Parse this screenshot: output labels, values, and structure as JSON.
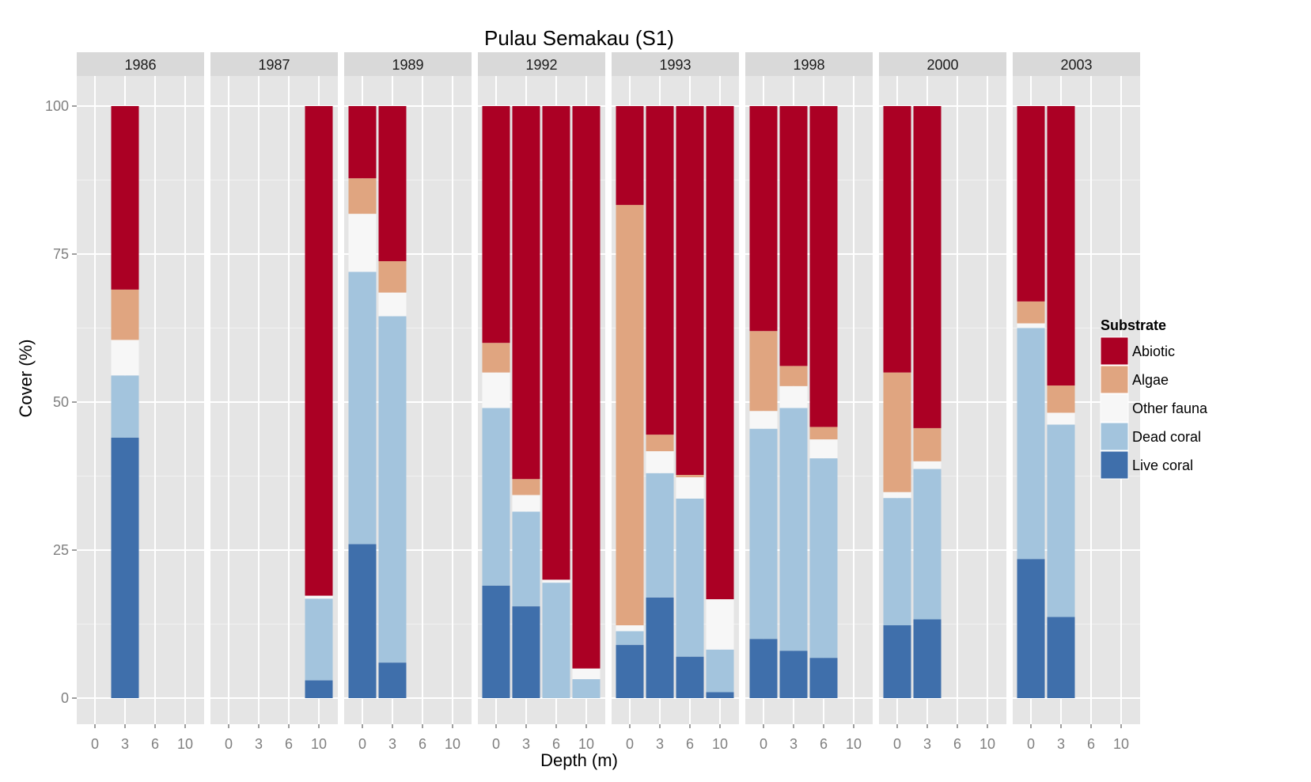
{
  "chart_data": {
    "type": "bar",
    "stacked": true,
    "faceted_by": "year",
    "title": "Pulau Semakau (S1)",
    "xlabel": "Depth (m)",
    "ylabel": "Cover (%)",
    "ylim": [
      0,
      100
    ],
    "yticks": [
      0,
      25,
      50,
      75,
      100
    ],
    "x_categories": [
      0,
      3,
      6,
      10
    ],
    "x_tick_labels": [
      "0",
      "3",
      "6",
      "10"
    ],
    "grid": true,
    "legend": {
      "title": "Substrate",
      "position": "right",
      "items": [
        {
          "name": "Abiotic",
          "color": "#ab0024"
        },
        {
          "name": "Algae",
          "color": "#e0a580"
        },
        {
          "name": "Other fauna",
          "color": "#f7f7f7"
        },
        {
          "name": "Dead coral",
          "color": "#a3c4dd"
        },
        {
          "name": "Live coral",
          "color": "#3f6fab"
        }
      ]
    },
    "stack_order_bottom_to_top": [
      "Live coral",
      "Dead coral",
      "Other fauna",
      "Algae",
      "Abiotic"
    ],
    "panels": [
      {
        "year": "1986",
        "bars": [
          {
            "depth": 3,
            "values": {
              "Live coral": 44,
              "Dead coral": 10.5,
              "Other fauna": 6,
              "Algae": 8.5,
              "Abiotic": 31
            }
          }
        ]
      },
      {
        "year": "1987",
        "bars": [
          {
            "depth": 10,
            "values": {
              "Live coral": 3,
              "Dead coral": 13.8,
              "Other fauna": 0.5,
              "Algae": 0,
              "Abiotic": 82.7
            }
          }
        ]
      },
      {
        "year": "1989",
        "bars": [
          {
            "depth": 0,
            "values": {
              "Live coral": 26,
              "Dead coral": 46,
              "Other fauna": 9.8,
              "Algae": 6,
              "Abiotic": 12.2
            }
          },
          {
            "depth": 3,
            "values": {
              "Live coral": 6,
              "Dead coral": 58.5,
              "Other fauna": 4,
              "Algae": 5.3,
              "Abiotic": 26.2
            }
          }
        ]
      },
      {
        "year": "1992",
        "bars": [
          {
            "depth": 0,
            "values": {
              "Live coral": 19,
              "Dead coral": 30,
              "Other fauna": 6,
              "Algae": 5,
              "Abiotic": 40
            }
          },
          {
            "depth": 3,
            "values": {
              "Live coral": 15.5,
              "Dead coral": 16,
              "Other fauna": 2.8,
              "Algae": 2.7,
              "Abiotic": 63
            }
          },
          {
            "depth": 6,
            "values": {
              "Live coral": 0,
              "Dead coral": 19.5,
              "Other fauna": 0.5,
              "Algae": 0,
              "Abiotic": 80
            }
          },
          {
            "depth": 10,
            "values": {
              "Live coral": 0,
              "Dead coral": 3.2,
              "Other fauna": 1.8,
              "Algae": 0,
              "Abiotic": 95
            }
          }
        ]
      },
      {
        "year": "1993",
        "bars": [
          {
            "depth": 0,
            "values": {
              "Live coral": 9,
              "Dead coral": 2.3,
              "Other fauna": 1,
              "Algae": 71,
              "Abiotic": 16.7
            }
          },
          {
            "depth": 3,
            "values": {
              "Live coral": 17,
              "Dead coral": 21,
              "Other fauna": 3.7,
              "Algae": 2.8,
              "Abiotic": 55.5
            }
          },
          {
            "depth": 6,
            "values": {
              "Live coral": 7,
              "Dead coral": 26.7,
              "Other fauna": 3.6,
              "Algae": 0.4,
              "Abiotic": 62.3
            }
          },
          {
            "depth": 10,
            "values": {
              "Live coral": 1,
              "Dead coral": 7.2,
              "Other fauna": 8.5,
              "Algae": 0,
              "Abiotic": 83.3
            }
          }
        ]
      },
      {
        "year": "1998",
        "bars": [
          {
            "depth": 0,
            "values": {
              "Live coral": 10,
              "Dead coral": 35.5,
              "Other fauna": 3,
              "Algae": 13.5,
              "Abiotic": 38
            }
          },
          {
            "depth": 3,
            "values": {
              "Live coral": 8,
              "Dead coral": 41,
              "Other fauna": 3.7,
              "Algae": 3.4,
              "Abiotic": 43.9
            }
          },
          {
            "depth": 6,
            "values": {
              "Live coral": 6.8,
              "Dead coral": 33.7,
              "Other fauna": 3.2,
              "Algae": 2.1,
              "Abiotic": 54.2
            }
          }
        ]
      },
      {
        "year": "2000",
        "bars": [
          {
            "depth": 0,
            "values": {
              "Live coral": 12.3,
              "Dead coral": 21.5,
              "Other fauna": 1,
              "Algae": 20.2,
              "Abiotic": 45
            }
          },
          {
            "depth": 3,
            "values": {
              "Live coral": 13.3,
              "Dead coral": 25.4,
              "Other fauna": 1.3,
              "Algae": 5.6,
              "Abiotic": 54.4
            }
          }
        ]
      },
      {
        "year": "2003",
        "bars": [
          {
            "depth": 0,
            "values": {
              "Live coral": 23.5,
              "Dead coral": 39,
              "Other fauna": 0.8,
              "Algae": 3.7,
              "Abiotic": 33
            }
          },
          {
            "depth": 3,
            "values": {
              "Live coral": 13.7,
              "Dead coral": 32.5,
              "Other fauna": 2,
              "Algae": 4.6,
              "Abiotic": 47.2
            }
          }
        ]
      }
    ]
  }
}
